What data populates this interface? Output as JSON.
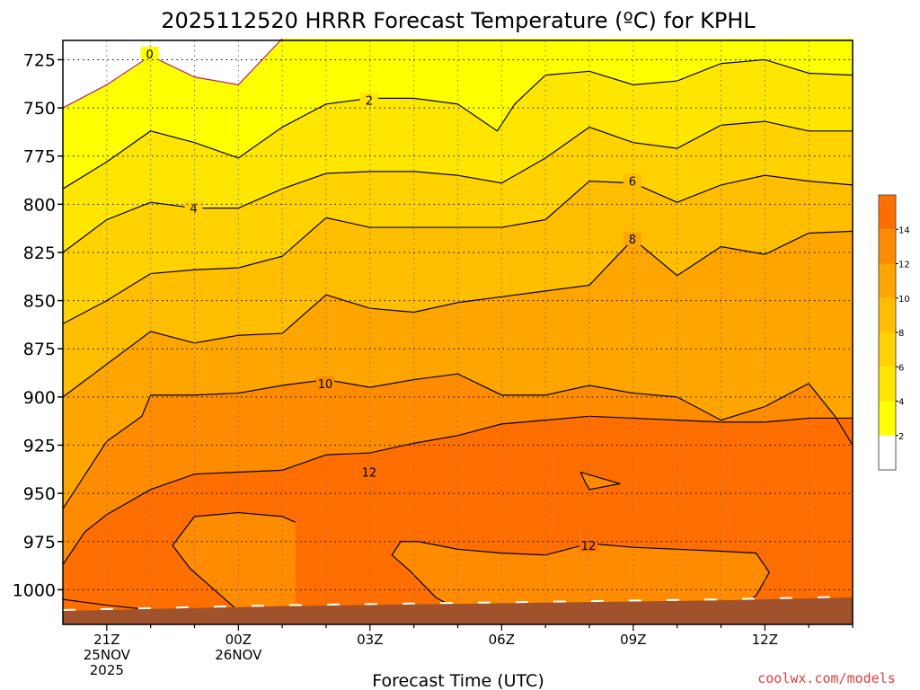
{
  "chart_data": {
    "type": "heatmap",
    "title": "2025112520 HRRR Forecast Temperature (ºC) for KPHL",
    "xlabel": "Forecast Time (UTC)",
    "ylabel": "",
    "credit": "coolwx.com/models",
    "x_unit": "hours after 2025-11-24 20Z",
    "xlim": [
      20,
      38
    ],
    "ylim": [
      715,
      1018
    ],
    "y_scale": "pressure (hPa), increasing downward",
    "x_ticks": [
      {
        "x": 21,
        "lines": [
          "21Z",
          "25NOV",
          "2025"
        ]
      },
      {
        "x": 24,
        "lines": [
          "00Z",
          "26NOV"
        ]
      },
      {
        "x": 27,
        "lines": [
          "03Z"
        ]
      },
      {
        "x": 30,
        "lines": [
          "06Z"
        ]
      },
      {
        "x": 33,
        "lines": [
          "09Z"
        ]
      },
      {
        "x": 36,
        "lines": [
          "12Z"
        ]
      }
    ],
    "y_ticks": [
      725,
      750,
      775,
      800,
      825,
      850,
      875,
      900,
      925,
      950,
      975,
      1000
    ],
    "grid": true,
    "colorbar": {
      "levels": [
        0,
        2,
        4,
        6,
        8,
        10,
        12,
        14,
        16
      ],
      "colors": [
        "#ffffff",
        "#ffff00",
        "#ffe600",
        "#ffd200",
        "#ffbe00",
        "#ffa500",
        "#ff8c00",
        "#ff6e00"
      ],
      "labels": [
        "2",
        "4",
        "6",
        "8",
        "10",
        "12",
        "14"
      ]
    },
    "surface_color": "#a0522d",
    "contours": [
      {
        "value": 0,
        "color": "#b8206a",
        "label": "0",
        "label_at": [
          21.98,
          722
        ],
        "points": [
          [
            20,
            750
          ],
          [
            21,
            738
          ],
          [
            22,
            723
          ],
          [
            23,
            734
          ],
          [
            24,
            738
          ],
          [
            25,
            714
          ]
        ]
      },
      {
        "value": 2,
        "color": "#000000",
        "label": "2",
        "label_at": [
          26.98,
          746
        ],
        "points": [
          [
            20,
            792
          ],
          [
            21,
            778
          ],
          [
            22,
            762
          ],
          [
            23,
            768
          ],
          [
            24,
            776
          ],
          [
            25,
            760
          ],
          [
            26,
            748
          ],
          [
            27,
            745
          ],
          [
            28,
            745
          ],
          [
            29,
            748
          ],
          [
            29.9,
            762
          ],
          [
            30.3,
            748
          ],
          [
            31,
            733
          ],
          [
            32,
            731
          ],
          [
            33,
            738
          ],
          [
            34,
            736
          ],
          [
            35,
            727
          ],
          [
            36,
            725
          ],
          [
            37,
            732
          ],
          [
            38,
            733
          ]
        ]
      },
      {
        "value": 4,
        "color": "#000000",
        "label": "4",
        "label_at": [
          22.98,
          802
        ],
        "points": [
          [
            20,
            825
          ],
          [
            21,
            808
          ],
          [
            22,
            799
          ],
          [
            23,
            802
          ],
          [
            24,
            802
          ],
          [
            25,
            792
          ],
          [
            26,
            784
          ],
          [
            27,
            783
          ],
          [
            28,
            783
          ],
          [
            29,
            785
          ],
          [
            30,
            789
          ],
          [
            31,
            776
          ],
          [
            32,
            760
          ],
          [
            33,
            768
          ],
          [
            34,
            771
          ],
          [
            35,
            759
          ],
          [
            36,
            757
          ],
          [
            37,
            762
          ],
          [
            38,
            762
          ]
        ]
      },
      {
        "value": 6,
        "color": "#000000",
        "label": "6",
        "label_at": [
          32.98,
          788
        ],
        "points": [
          [
            20,
            862
          ],
          [
            21,
            850
          ],
          [
            22,
            836
          ],
          [
            23,
            834
          ],
          [
            24,
            833
          ],
          [
            25,
            827
          ],
          [
            26,
            807
          ],
          [
            27,
            812
          ],
          [
            28,
            812
          ],
          [
            29,
            812
          ],
          [
            30,
            812
          ],
          [
            31,
            808
          ],
          [
            32,
            788
          ],
          [
            33,
            789
          ],
          [
            34,
            799
          ],
          [
            35,
            790
          ],
          [
            36,
            785
          ],
          [
            37,
            788
          ],
          [
            38,
            790
          ]
        ]
      },
      {
        "value": 8,
        "color": "#000000",
        "label": "8",
        "label_at": [
          32.98,
          818
        ],
        "points": [
          [
            20,
            900
          ],
          [
            21,
            883
          ],
          [
            22,
            866
          ],
          [
            23,
            872
          ],
          [
            24,
            868
          ],
          [
            25,
            867
          ],
          [
            26,
            847
          ],
          [
            27,
            854
          ],
          [
            28,
            856
          ],
          [
            29,
            851
          ],
          [
            30,
            848
          ],
          [
            31,
            845
          ],
          [
            32,
            842
          ],
          [
            33,
            818
          ],
          [
            34,
            837
          ],
          [
            35,
            822
          ],
          [
            36,
            826
          ],
          [
            37,
            815
          ],
          [
            38,
            814
          ]
        ]
      },
      {
        "value": 10,
        "color": "#000000",
        "label": "10",
        "label_at": [
          25.98,
          893
        ],
        "points": [
          [
            20,
            958
          ],
          [
            21,
            923
          ],
          [
            21.8,
            910
          ],
          [
            22,
            899
          ],
          [
            23,
            899
          ],
          [
            24,
            898
          ],
          [
            25,
            894
          ],
          [
            26,
            891
          ],
          [
            27,
            895
          ],
          [
            28,
            891
          ],
          [
            29,
            888
          ],
          [
            30,
            899
          ],
          [
            31,
            899
          ],
          [
            32,
            894
          ],
          [
            33,
            898
          ],
          [
            34,
            900
          ],
          [
            35,
            912
          ],
          [
            36,
            905
          ],
          [
            37,
            893
          ],
          [
            37.6,
            910
          ],
          [
            38,
            925
          ]
        ]
      },
      {
        "value": 12,
        "color": "#000000",
        "label": "12",
        "label_at": [
          26.98,
          939
        ],
        "points": [
          [
            20,
            987
          ],
          [
            20.5,
            970
          ],
          [
            21,
            961
          ],
          [
            22,
            948
          ],
          [
            23,
            940
          ],
          [
            24,
            939
          ],
          [
            25,
            938
          ],
          [
            26,
            930
          ],
          [
            27,
            929
          ],
          [
            28,
            924
          ],
          [
            29,
            920
          ],
          [
            30,
            914
          ],
          [
            31,
            912
          ],
          [
            32,
            910
          ],
          [
            33,
            911
          ],
          [
            34,
            912
          ],
          [
            35,
            913
          ],
          [
            36,
            913
          ],
          [
            37,
            911
          ],
          [
            38,
            911
          ]
        ]
      },
      {
        "value": 12,
        "color": "#000000",
        "label": "12",
        "label_at": [
          31.98,
          977
        ],
        "points": [
          [
            24.8,
            1015
          ],
          [
            24.1,
            1014
          ],
          [
            23.9,
            1009
          ],
          [
            22.9,
            989
          ],
          [
            22.5,
            977
          ],
          [
            23,
            962
          ],
          [
            24,
            960
          ],
          [
            25,
            962
          ],
          [
            25.3,
            965
          ]
        ]
      },
      {
        "value": 12,
        "color": "#000000",
        "label": "12",
        "label_at": [
          31.98,
          977
        ],
        "points": [
          [
            29.3,
            1014
          ],
          [
            28.5,
            1004
          ],
          [
            27.9,
            990
          ],
          [
            27.5,
            982
          ],
          [
            27.7,
            975
          ],
          [
            28.1,
            975
          ],
          [
            29,
            979
          ],
          [
            30,
            981
          ],
          [
            31,
            982
          ],
          [
            32,
            976
          ],
          [
            33,
            978
          ],
          [
            34,
            979
          ],
          [
            35,
            980
          ],
          [
            35.8,
            981
          ],
          [
            36.1,
            991
          ],
          [
            35.8,
            1003
          ],
          [
            35.4,
            1010
          ],
          [
            35,
            1013
          ]
        ]
      },
      {
        "value": 12,
        "color": "#000000",
        "label": "",
        "label_at": [
          0,
          0
        ],
        "points": [
          [
            31.8,
            939
          ],
          [
            31.9,
            944
          ],
          [
            32,
            948
          ],
          [
            32.7,
            945
          ],
          [
            31.8,
            939
          ]
        ]
      },
      {
        "value": 12,
        "color": "#000000",
        "label": "",
        "label_at": [
          0,
          0
        ],
        "points": [
          [
            20,
            1005
          ],
          [
            21,
            1008
          ],
          [
            21.8,
            1010
          ],
          [
            21.85,
            1017
          ]
        ]
      }
    ]
  }
}
